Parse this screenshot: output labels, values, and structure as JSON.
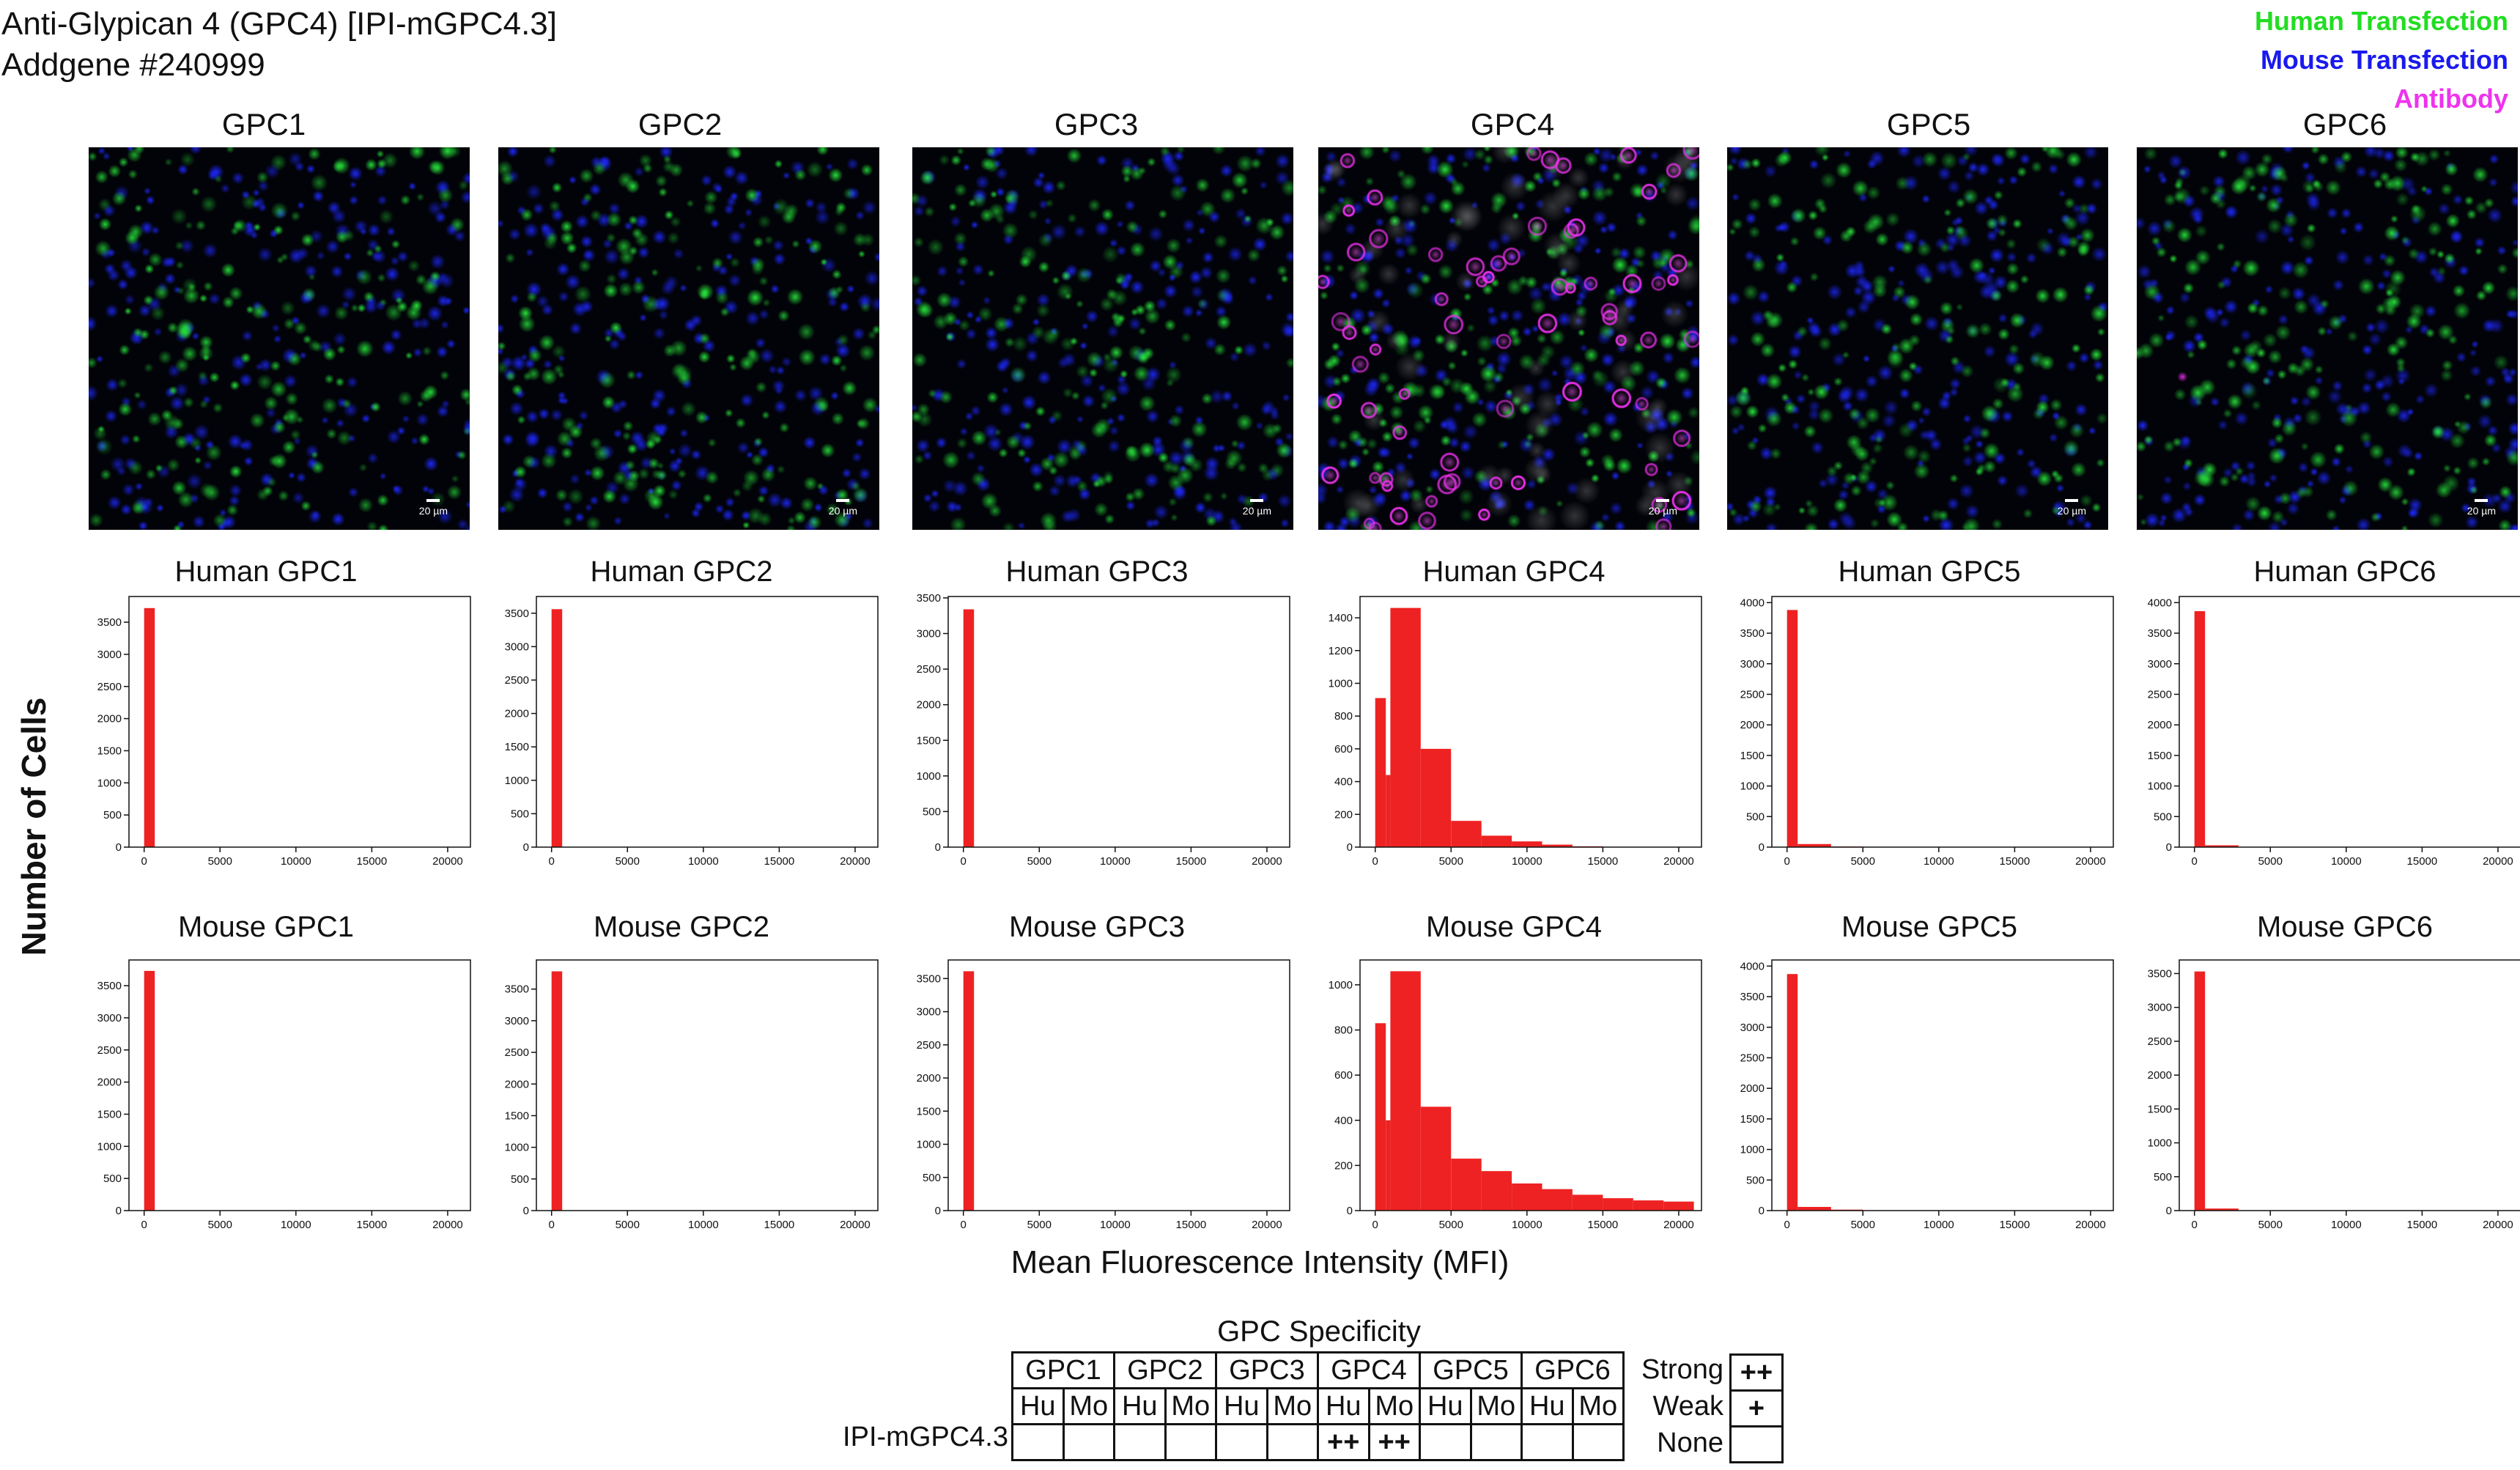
{
  "header": {
    "title": "Anti-Glypican 4 (GPC4) [IPI-mGPC4.3]",
    "subtitle": "Addgene #240999"
  },
  "legend": [
    {
      "label": "Human Transfection",
      "color": "#22dd22"
    },
    {
      "label": "Mouse Transfection",
      "color": "#1a1aee"
    },
    {
      "label": "Antibody",
      "color": "#ee33ee"
    }
  ],
  "columns": [
    "GPC1",
    "GPC2",
    "GPC3",
    "GPC4",
    "GPC5",
    "GPC6"
  ],
  "micrographs": [
    {
      "name": "GPC1",
      "scale": "20 µm",
      "antibody_signal": "none"
    },
    {
      "name": "GPC2",
      "scale": "20 µm",
      "antibody_signal": "none"
    },
    {
      "name": "GPC3",
      "scale": "20 µm",
      "antibody_signal": "none"
    },
    {
      "name": "GPC4",
      "scale": "20 µm",
      "antibody_signal": "strong"
    },
    {
      "name": "GPC5",
      "scale": "20 µm",
      "antibody_signal": "none"
    },
    {
      "name": "GPC6",
      "scale": "20 µm",
      "antibody_signal": "trace"
    }
  ],
  "axes": {
    "ylabel": "Number of Cells",
    "xlabel": "Mean Fluorescence Intensity (MFI)"
  },
  "chart_data": [
    {
      "type": "bar",
      "title": "Human GPC1",
      "bin_width": 700,
      "x_ticks": [
        0,
        5000,
        10000,
        15000,
        20000
      ],
      "y_ticks": [
        0,
        500,
        1000,
        1500,
        2000,
        2500,
        3000,
        3500
      ],
      "ylim": [
        0,
        3900
      ],
      "bins": [
        {
          "x0": 0,
          "x1": 700,
          "count": 3720
        }
      ],
      "bar_color": "#ee2222"
    },
    {
      "type": "bar",
      "title": "Human GPC2",
      "bin_width": 700,
      "x_ticks": [
        0,
        5000,
        10000,
        15000,
        20000
      ],
      "y_ticks": [
        0,
        500,
        1000,
        1500,
        2000,
        2500,
        3000,
        3500
      ],
      "ylim": [
        0,
        3750
      ],
      "bins": [
        {
          "x0": 0,
          "x1": 700,
          "count": 3560
        }
      ],
      "bar_color": "#ee2222"
    },
    {
      "type": "bar",
      "title": "Human GPC3",
      "bin_width": 700,
      "x_ticks": [
        0,
        5000,
        10000,
        15000,
        20000
      ],
      "y_ticks": [
        0,
        500,
        1000,
        1500,
        2000,
        2500,
        3000,
        3500
      ],
      "ylim": [
        0,
        3520
      ],
      "bins": [
        {
          "x0": 0,
          "x1": 700,
          "count": 3340
        }
      ],
      "bar_color": "#ee2222"
    },
    {
      "type": "bar",
      "title": "Human GPC4",
      "x_ticks": [
        0,
        5000,
        10000,
        15000,
        20000
      ],
      "y_ticks": [
        0,
        200,
        400,
        600,
        800,
        1000,
        1200,
        1400
      ],
      "ylim": [
        0,
        1530
      ],
      "bins": [
        {
          "x0": 0,
          "x1": 700,
          "count": 910
        },
        {
          "x0": 700,
          "x1": 1000,
          "count": 440
        },
        {
          "x0": 1000,
          "x1": 3000,
          "count": 1460
        },
        {
          "x0": 3000,
          "x1": 5000,
          "count": 600
        },
        {
          "x0": 5000,
          "x1": 7000,
          "count": 160
        },
        {
          "x0": 7000,
          "x1": 9000,
          "count": 70
        },
        {
          "x0": 9000,
          "x1": 11000,
          "count": 35
        },
        {
          "x0": 11000,
          "x1": 13000,
          "count": 15
        },
        {
          "x0": 13000,
          "x1": 15000,
          "count": 5
        }
      ],
      "bar_color": "#ee2222"
    },
    {
      "type": "bar",
      "title": "Human GPC5",
      "x_ticks": [
        0,
        5000,
        10000,
        15000,
        20000
      ],
      "y_ticks": [
        0,
        500,
        1000,
        1500,
        2000,
        2500,
        3000,
        3500,
        4000
      ],
      "ylim": [
        0,
        4100
      ],
      "bins": [
        {
          "x0": 0,
          "x1": 700,
          "count": 3880
        },
        {
          "x0": 700,
          "x1": 2900,
          "count": 50
        },
        {
          "x0": 2900,
          "x1": 5000,
          "count": 10
        }
      ],
      "bar_color": "#ee2222"
    },
    {
      "type": "bar",
      "title": "Human GPC6",
      "x_ticks": [
        0,
        5000,
        10000,
        15000,
        20000
      ],
      "y_ticks": [
        0,
        500,
        1000,
        1500,
        2000,
        2500,
        3000,
        3500,
        4000
      ],
      "ylim": [
        0,
        4100
      ],
      "bins": [
        {
          "x0": 0,
          "x1": 700,
          "count": 3860
        },
        {
          "x0": 700,
          "x1": 2900,
          "count": 30
        }
      ],
      "bar_color": "#ee2222"
    },
    {
      "type": "bar",
      "title": "Mouse GPC1",
      "x_ticks": [
        0,
        5000,
        10000,
        15000,
        20000
      ],
      "y_ticks": [
        0,
        500,
        1000,
        1500,
        2000,
        2500,
        3000,
        3500
      ],
      "ylim": [
        0,
        3900
      ],
      "bins": [
        {
          "x0": 0,
          "x1": 700,
          "count": 3730
        }
      ],
      "bar_color": "#ee2222"
    },
    {
      "type": "bar",
      "title": "Mouse GPC2",
      "x_ticks": [
        0,
        5000,
        10000,
        15000,
        20000
      ],
      "y_ticks": [
        0,
        500,
        1000,
        1500,
        2000,
        2500,
        3000,
        3500
      ],
      "ylim": [
        0,
        3960
      ],
      "bins": [
        {
          "x0": 0,
          "x1": 700,
          "count": 3780
        }
      ],
      "bar_color": "#ee2222"
    },
    {
      "type": "bar",
      "title": "Mouse GPC3",
      "x_ticks": [
        0,
        5000,
        10000,
        15000,
        20000
      ],
      "y_ticks": [
        0,
        500,
        1000,
        1500,
        2000,
        2500,
        3000,
        3500
      ],
      "ylim": [
        0,
        3780
      ],
      "bins": [
        {
          "x0": 0,
          "x1": 700,
          "count": 3610
        }
      ],
      "bar_color": "#ee2222"
    },
    {
      "type": "bar",
      "title": "Mouse GPC4",
      "x_ticks": [
        0,
        5000,
        10000,
        15000,
        20000
      ],
      "y_ticks": [
        0,
        200,
        400,
        600,
        800,
        1000
      ],
      "ylim": [
        0,
        1110
      ],
      "bins": [
        {
          "x0": 0,
          "x1": 700,
          "count": 830
        },
        {
          "x0": 700,
          "x1": 1000,
          "count": 400
        },
        {
          "x0": 1000,
          "x1": 3000,
          "count": 1060
        },
        {
          "x0": 3000,
          "x1": 5000,
          "count": 460
        },
        {
          "x0": 5000,
          "x1": 7000,
          "count": 230
        },
        {
          "x0": 7000,
          "x1": 9000,
          "count": 175
        },
        {
          "x0": 9000,
          "x1": 11000,
          "count": 120
        },
        {
          "x0": 11000,
          "x1": 13000,
          "count": 95
        },
        {
          "x0": 13000,
          "x1": 15000,
          "count": 70
        },
        {
          "x0": 15000,
          "x1": 17000,
          "count": 55
        },
        {
          "x0": 17000,
          "x1": 19000,
          "count": 45
        },
        {
          "x0": 19000,
          "x1": 21000,
          "count": 40
        }
      ],
      "bar_color": "#ee2222"
    },
    {
      "type": "bar",
      "title": "Mouse GPC5",
      "x_ticks": [
        0,
        5000,
        10000,
        15000,
        20000
      ],
      "y_ticks": [
        0,
        500,
        1000,
        1500,
        2000,
        2500,
        3000,
        3500,
        4000
      ],
      "ylim": [
        0,
        4100
      ],
      "bins": [
        {
          "x0": 0,
          "x1": 700,
          "count": 3870
        },
        {
          "x0": 700,
          "x1": 2900,
          "count": 60
        },
        {
          "x0": 2900,
          "x1": 5000,
          "count": 15
        }
      ],
      "bar_color": "#ee2222"
    },
    {
      "type": "bar",
      "title": "Mouse GPC6",
      "x_ticks": [
        0,
        5000,
        10000,
        15000,
        20000
      ],
      "y_ticks": [
        0,
        500,
        1000,
        1500,
        2000,
        2500,
        3000,
        3500
      ],
      "ylim": [
        0,
        3700
      ],
      "bins": [
        {
          "x0": 0,
          "x1": 700,
          "count": 3530
        },
        {
          "x0": 700,
          "x1": 2900,
          "count": 30
        }
      ],
      "bar_color": "#ee2222"
    }
  ],
  "xlim": [
    -1000,
    21500
  ],
  "specificity": {
    "title": "GPC Specificity",
    "groups": [
      "GPC1",
      "GPC2",
      "GPC3",
      "GPC4",
      "GPC5",
      "GPC6"
    ],
    "subheaders": [
      "Hu",
      "Mo"
    ],
    "antibody": "IPI-mGPC4.3",
    "results": [
      "",
      "",
      "",
      "",
      "",
      "",
      "++",
      "++",
      "",
      "",
      "",
      ""
    ],
    "key": [
      {
        "label": "Strong",
        "symbol": "++"
      },
      {
        "label": "Weak",
        "symbol": "+"
      },
      {
        "label": "None",
        "symbol": ""
      }
    ]
  }
}
